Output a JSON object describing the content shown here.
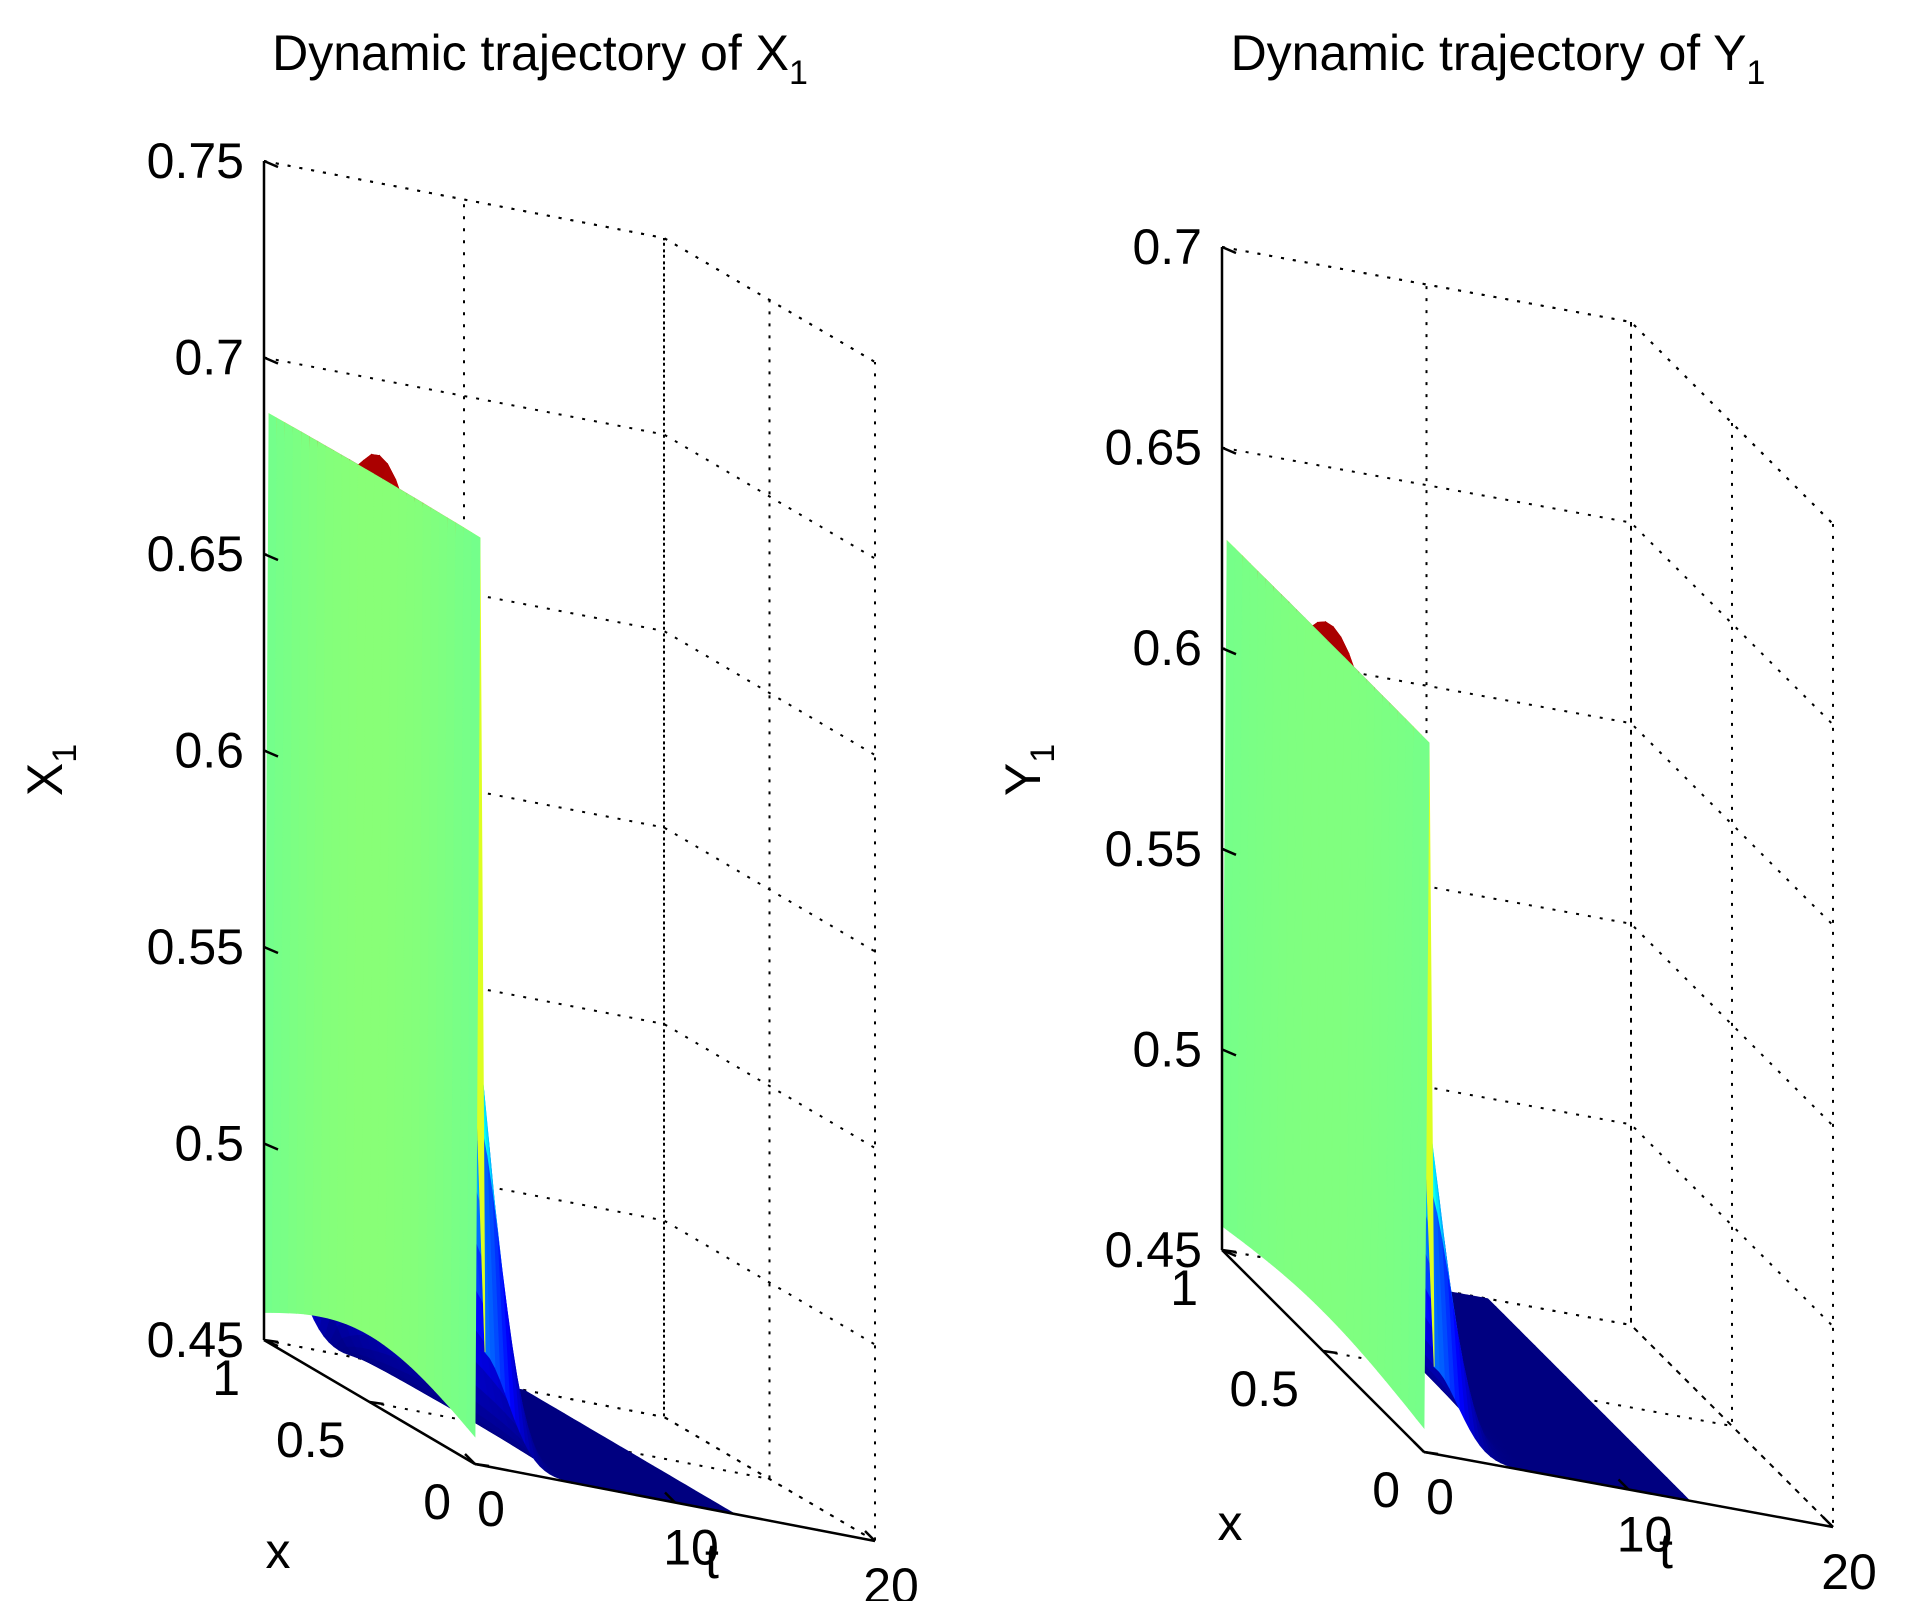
{
  "chart_data": [
    {
      "id": "X",
      "type": "surface",
      "title": "Dynamic trajectory of X",
      "title_subscript": "1",
      "zlabel": "X",
      "zlabel_subscript": "1",
      "xlabel": "x",
      "tlabel": "t",
      "zlim": [
        0.45,
        0.75
      ],
      "zticks": [
        "0.45",
        "0.5",
        "0.55",
        "0.6",
        "0.65",
        "0.7",
        "0.75"
      ],
      "xlim": [
        0,
        1
      ],
      "xticks": [
        "0",
        "0.5",
        "1"
      ],
      "tlim": [
        0,
        20
      ],
      "tticks": [
        "0",
        "10",
        "20"
      ],
      "colormap": "jet",
      "surface": {
        "t_range": [
          0,
          13
        ],
        "x_range": [
          0,
          1
        ],
        "base_at_x_edges": 0.457,
        "base_at_x_center": 0.467,
        "peak_value": 0.694,
        "peak_t": 0.3,
        "final_value": 0.45
      },
      "colors": {
        "low": "#00008f",
        "high": "#800000"
      }
    },
    {
      "id": "Y",
      "type": "surface",
      "title": "Dynamic trajectory of Y",
      "title_subscript": "1",
      "zlabel": "Y",
      "zlabel_subscript": "1",
      "xlabel": "x",
      "tlabel": "t",
      "zlim": [
        0.45,
        0.7
      ],
      "zticks": [
        "0.45",
        "0.5",
        "0.55",
        "0.6",
        "0.65",
        "0.7"
      ],
      "xlim": [
        0,
        1
      ],
      "xticks": [
        "0",
        "0.5",
        "1"
      ],
      "tlim": [
        0,
        20
      ],
      "tticks": [
        "0",
        "10",
        "20"
      ],
      "colormap": "jet",
      "surface": {
        "t_range": [
          0,
          13
        ],
        "x_range": [
          0,
          1
        ],
        "base_at_x_edges": 0.456,
        "base_at_x_center": 0.46,
        "peak_value": 0.633,
        "peak_t": 0.3,
        "final_value": 0.45
      },
      "colors": {
        "low": "#00008f",
        "high": "#800000"
      }
    }
  ]
}
